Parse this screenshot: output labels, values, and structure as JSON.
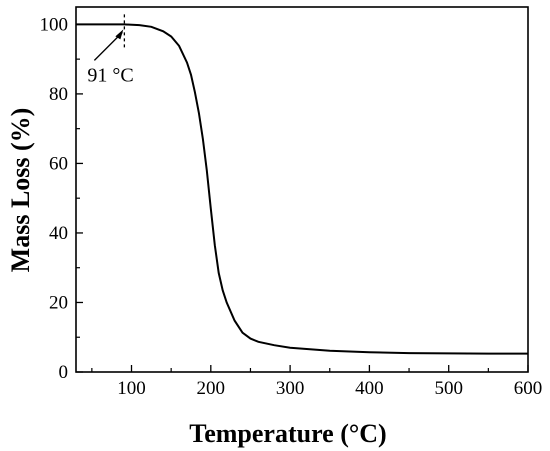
{
  "chart_data": {
    "type": "line",
    "title": "",
    "xlabel": "Temperature (°C)",
    "ylabel": "Mass Loss (%)",
    "xlim": [
      30,
      600
    ],
    "ylim": [
      0,
      105
    ],
    "xticks": [
      100,
      200,
      300,
      400,
      500,
      600
    ],
    "yticks": [
      0,
      20,
      40,
      60,
      80,
      100
    ],
    "grid": false,
    "legend": "none",
    "line_color": "#000000",
    "series": [
      {
        "x": [
          30,
          60,
          91,
          110,
          125,
          140,
          150,
          160,
          170,
          175,
          180,
          185,
          190,
          195,
          200,
          205,
          210,
          215,
          220,
          230,
          240,
          250,
          260,
          280,
          300,
          350,
          400,
          450,
          500,
          550,
          600
        ],
        "y": [
          100,
          100,
          100,
          99.8,
          99.3,
          98,
          96.5,
          93.8,
          89,
          85.5,
          80.5,
          74.5,
          67,
          58,
          47,
          36.5,
          28.5,
          23.5,
          20,
          14.8,
          11.3,
          9.6,
          8.7,
          7.7,
          7.0,
          6.1,
          5.7,
          5.45,
          5.35,
          5.3,
          5.3
        ]
      }
    ],
    "annotations": [
      {
        "text": "91 °C",
        "x": 91,
        "y": 100,
        "marker": "dashed vertical line with arrow"
      }
    ]
  }
}
